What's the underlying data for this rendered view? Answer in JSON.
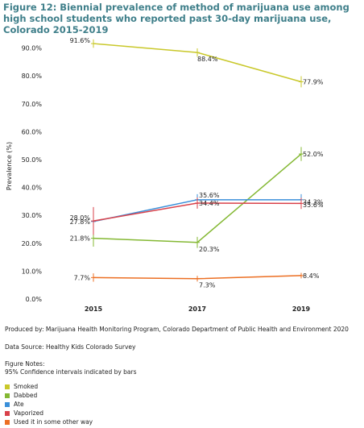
{
  "title": "Figure 12: Biennial prevalence of method of marijuana use among high school students who reported past 30-day marijuana use, Colorado 2015-2019",
  "produced_by": "Produced by: Marijuana Health Monitoring Program, Colorado Department of Public Health and Environment 2020",
  "data_source": "Data Source: Healthy Kids Colorado Survey",
  "notes_heading": "Figure Notes:",
  "notes_text": "95% Confidence intervals indicated by bars",
  "chart_data": {
    "type": "line",
    "title": "",
    "xlabel": "",
    "ylabel": "Prevalence (%)",
    "x": [
      "2015",
      "2017",
      "2019"
    ],
    "ylim": [
      0,
      90
    ],
    "yticks": [
      "0.0%",
      "10.0%",
      "20.0%",
      "30.0%",
      "40.0%",
      "50.0%",
      "60.0%",
      "70.0%",
      "80.0%",
      "90.0%"
    ],
    "grid": false,
    "legend_position": "bottom-left",
    "series": [
      {
        "name": "Smoked",
        "color": "#c9c82a",
        "values": [
          91.6,
          88.4,
          77.9
        ],
        "labels": [
          "91.6%",
          "88.4%",
          "77.9%"
        ]
      },
      {
        "name": "Dabbed",
        "color": "#84b833",
        "values": [
          21.8,
          20.3,
          52.0
        ],
        "labels": [
          "21.8%",
          "20.3%",
          "52.0%"
        ]
      },
      {
        "name": "Ate",
        "color": "#3a8fd9",
        "values": [
          27.8,
          35.6,
          35.6
        ],
        "labels": [
          "27.8%",
          "35.6%",
          "35.6%"
        ]
      },
      {
        "name": "Vaporized",
        "color": "#d9414a",
        "values": [
          28.0,
          34.4,
          34.3
        ],
        "labels": [
          "28.0%",
          "34.4%",
          "34.3%"
        ]
      },
      {
        "name": "Used it in some other way",
        "color": "#ec6f23",
        "values": [
          7.7,
          7.3,
          8.4
        ],
        "labels": [
          "7.7%",
          "7.3%",
          "8.4%"
        ]
      }
    ]
  }
}
